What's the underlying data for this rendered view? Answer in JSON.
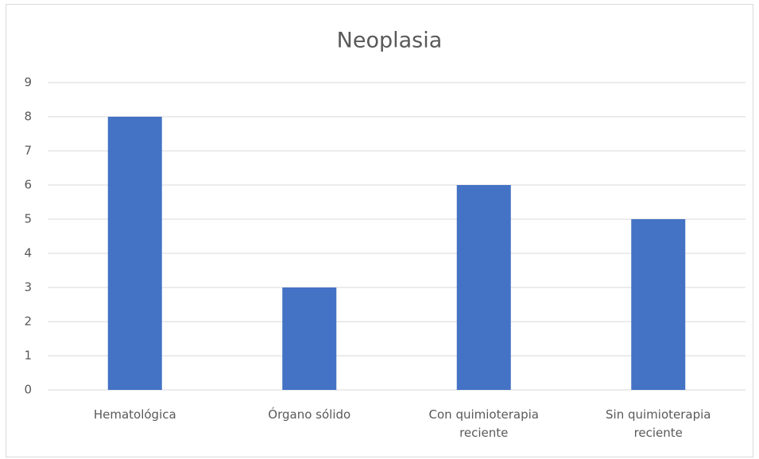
{
  "chart_data": {
    "type": "bar",
    "title": "Neoplasia",
    "categories": [
      "Hematológica",
      "Órgano sólido",
      "Con quimioterapia reciente",
      "Sin quimioterapia reciente"
    ],
    "values": [
      8,
      3,
      6,
      5
    ],
    "color": "#4472c4",
    "ylim": [
      0,
      9
    ],
    "yticks": [
      0,
      1,
      2,
      3,
      4,
      5,
      6,
      7,
      8,
      9
    ],
    "grid": true
  }
}
